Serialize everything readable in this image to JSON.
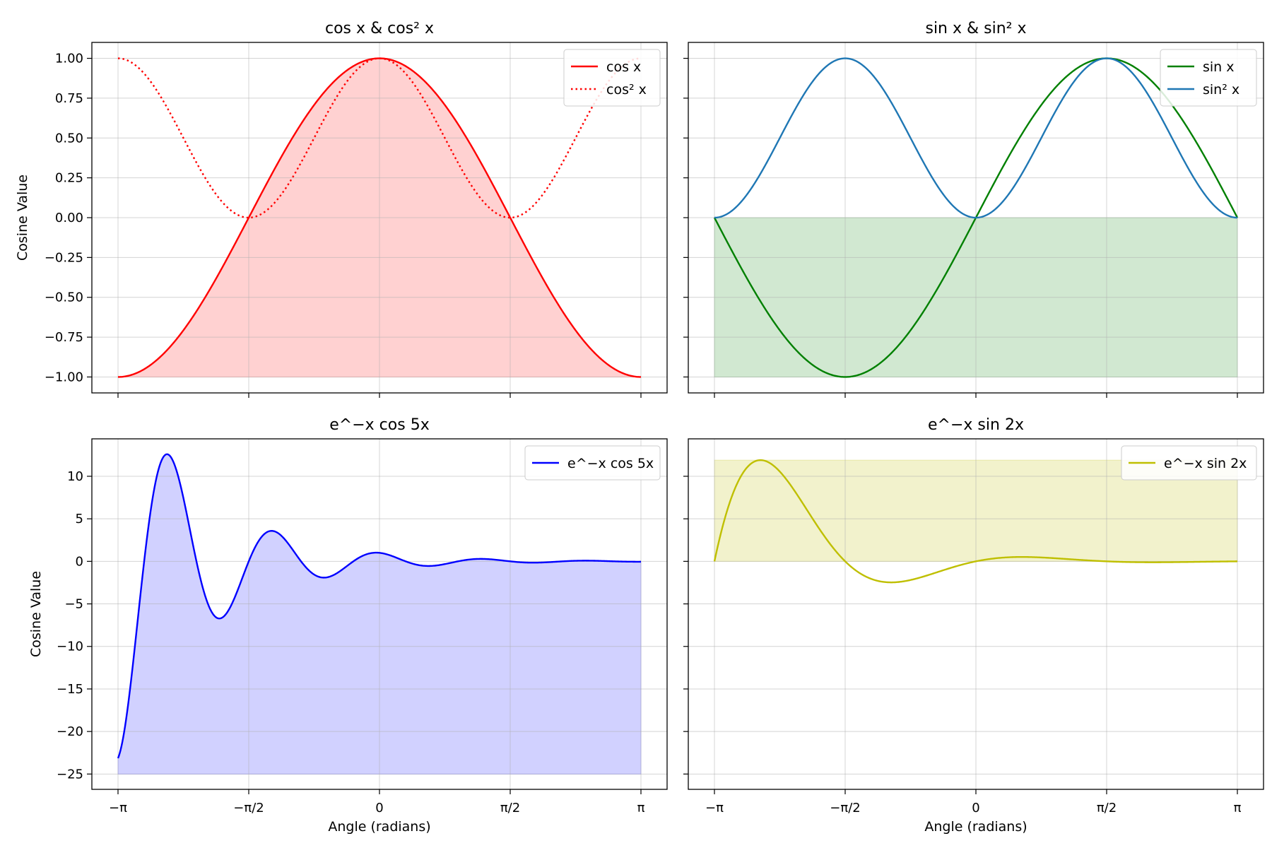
{
  "chart_data": [
    {
      "type": "line",
      "title": "cos x & cos² x",
      "xlabel": "",
      "ylabel": "Cosine Value",
      "x_range": [
        "−π",
        "π"
      ],
      "ylim": [
        -1.1,
        1.1
      ],
      "xticks": [
        "−π",
        "−π/2",
        "0",
        "π/2",
        "π"
      ],
      "show_xtick_labels": false,
      "yticks": [
        -1.0,
        -0.75,
        -0.5,
        -0.25,
        0.0,
        0.25,
        0.5,
        0.75,
        1.0
      ],
      "ytick_labels": [
        "−1.00",
        "−0.75",
        "−0.50",
        "−0.25",
        "0.00",
        "0.25",
        "0.50",
        "0.75",
        "1.00"
      ],
      "grid": true,
      "legend_position": "top-right",
      "series": [
        {
          "name": "cos x",
          "function": "cos",
          "color": "#ff0000",
          "style": "solid"
        },
        {
          "name": "cos² x",
          "function": "cos2",
          "color": "#ff0000",
          "style": "dotted"
        }
      ],
      "fill": {
        "series": "cos x",
        "baseline": -1,
        "color": "#ff0000",
        "opacity": 0.18
      }
    },
    {
      "type": "line",
      "title": "sin x & sin² x",
      "xlabel": "",
      "ylabel": "",
      "x_range": [
        "−π",
        "π"
      ],
      "ylim": [
        -1.1,
        1.1
      ],
      "xticks": [
        "−π",
        "−π/2",
        "0",
        "π/2",
        "π"
      ],
      "show_xtick_labels": false,
      "yticks": [
        -1.0,
        -0.75,
        -0.5,
        -0.25,
        0.0,
        0.25,
        0.5,
        0.75,
        1.0
      ],
      "show_ytick_labels": false,
      "grid": true,
      "legend_position": "top-right",
      "series": [
        {
          "name": "sin x",
          "function": "sin",
          "color": "#008000",
          "style": "solid"
        },
        {
          "name": "sin² x",
          "function": "sin2",
          "color": "#1f77b4",
          "style": "solid"
        }
      ],
      "fill": {
        "type": "band",
        "from": -1,
        "to": 0,
        "color": "#008000",
        "opacity": 0.18
      }
    },
    {
      "type": "line",
      "title": "e^−x cos 5x",
      "xlabel": "Angle (radians)",
      "ylabel": "Cosine Value",
      "x_range": [
        "−π",
        "π"
      ],
      "ylim": [
        -26.8,
        14.4
      ],
      "xticks": [
        "−π",
        "−π/2",
        "0",
        "π/2",
        "π"
      ],
      "yticks": [
        -25,
        -20,
        -15,
        -10,
        -5,
        0,
        5,
        10
      ],
      "ytick_labels": [
        "−25",
        "−20",
        "−15",
        "−10",
        "−5",
        "0",
        "5",
        "10"
      ],
      "grid": true,
      "legend_position": "top-right",
      "series": [
        {
          "name": "e^−x cos 5x",
          "function": "expcos5",
          "color": "#0000ff",
          "style": "solid"
        }
      ],
      "fill": {
        "series": "e^−x cos 5x",
        "baseline": -25,
        "color": "#0000ff",
        "opacity": 0.18
      }
    },
    {
      "type": "line",
      "title": "e^−x sin 2x",
      "xlabel": "Angle (radians)",
      "ylabel": "",
      "x_range": [
        "−π",
        "π"
      ],
      "ylim": [
        -26.8,
        14.4
      ],
      "xticks": [
        "−π",
        "−π/2",
        "0",
        "π/2",
        "π"
      ],
      "yticks": [
        -25,
        -20,
        -15,
        -10,
        -5,
        0,
        5,
        10
      ],
      "show_ytick_labels": false,
      "grid": true,
      "legend_position": "top-right",
      "series": [
        {
          "name": "e^−x sin 2x",
          "function": "expsin2",
          "color": "#bfbf00",
          "style": "solid"
        }
      ],
      "fill": {
        "type": "band",
        "from": 0,
        "to": 11.9,
        "color": "#bfbf00",
        "opacity": 0.2
      }
    }
  ]
}
